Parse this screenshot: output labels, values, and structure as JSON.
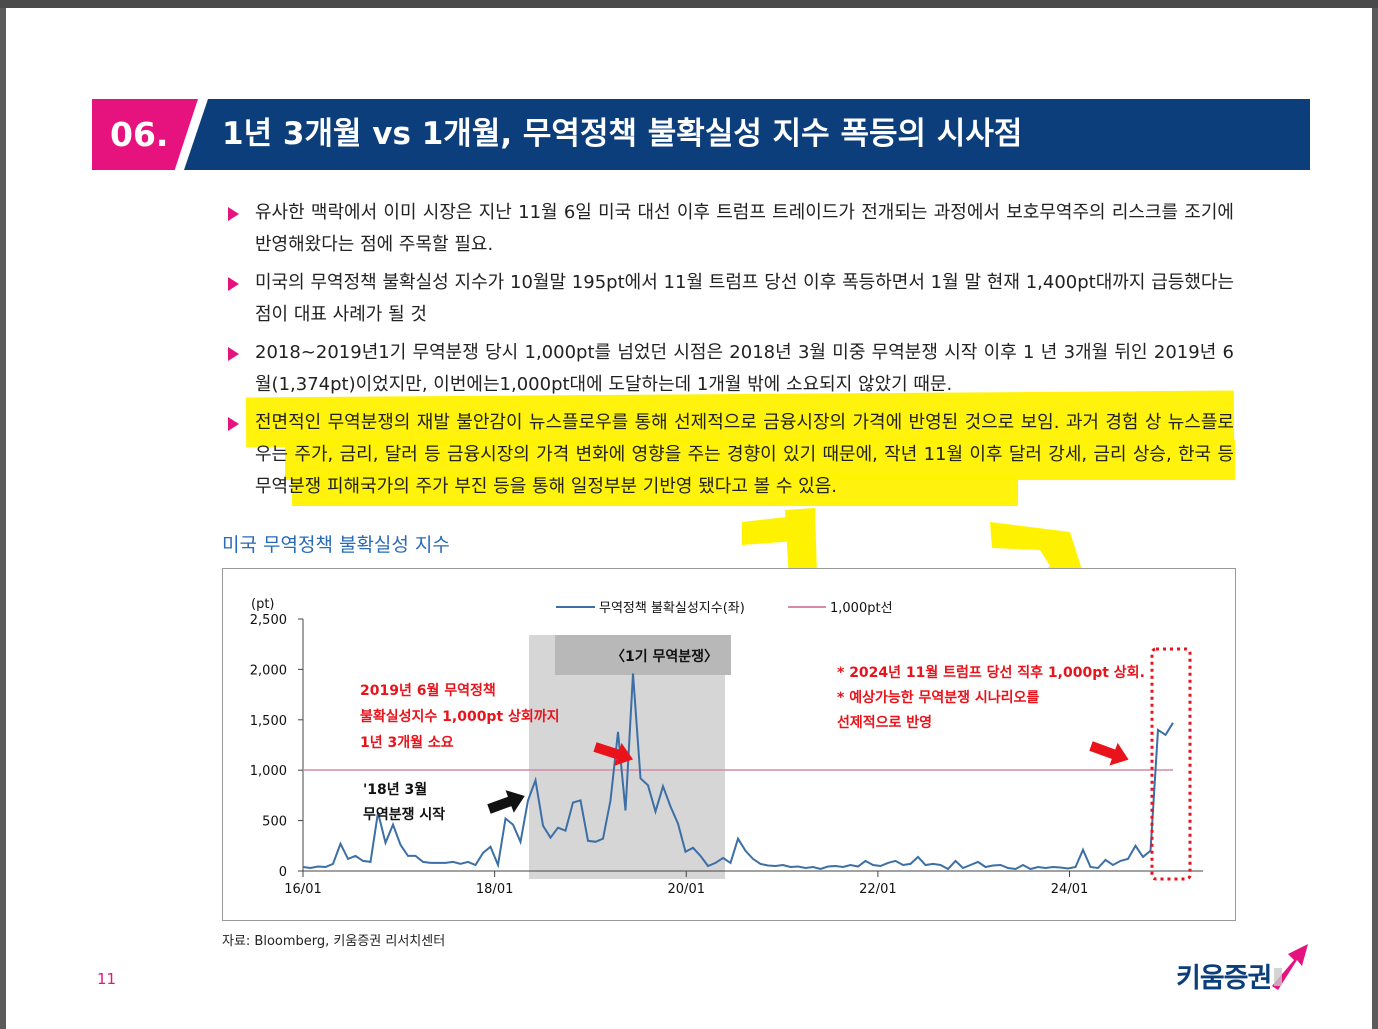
{
  "header": {
    "number": "06.",
    "title": "1년 3개월 vs 1개월, 무역정책 불확실성 지수 폭등의 시사점"
  },
  "bullets": [
    "유사한 맥락에서 이미 시장은 지난 11월 6일 미국 대선 이후 트럼프 트레이드가 전개되는 과정에서 보호무역주의 리스크를 조기에 반영해왔다는 점에 주목할 필요.",
    "미국의 무역정책 불확실성 지수가 10월말 195pt에서 11월 트럼프 당선 이후 폭등하면서 1월 말 현재 1,400pt대까지 급등했다는 점이 대표 사례가 될 것",
    "2018~2019년1기 무역분쟁 당시 1,000pt를 넘었던 시점은 2018년 3월 미중 무역분쟁 시작 이후 1 년 3개월 뒤인 2019년 6월(1,374pt)이었지만, 이번에는1,000pt대에 도달하는데 1개월 밖에 소요되지 않았기 때문.",
    "전면적인 무역분쟁의 재발 불안감이 뉴스플로우를 통해 선제적으로 금융시장의 가격에 반영된 것으로 보임. 과거 경험 상 뉴스플로우는 주가, 금리, 달러 등 금융시장의 가격 변화에 영향을 주는 경향이 있기 때문에, 작년 11월 이후 달러 강세, 금리 상승, 한국 등 무역분쟁 피해국가의 주가 부진 등을 통해 일정부분 기반영 됐다고 볼 수 있음."
  ],
  "chart_title": "미국 무역정책 불확실성 지수",
  "chart_data": {
    "type": "line",
    "unit_label": "(pt)",
    "ylim": [
      0,
      2500
    ],
    "yticks": [
      "2,500",
      "2,000",
      "1,500",
      "1,000",
      "500",
      "0"
    ],
    "xticks": [
      "16/01",
      "18/01",
      "20/01",
      "22/01",
      "24/01"
    ],
    "legend": {
      "series": "무역정책 불확실성지수(좌)",
      "threshold": "1,000pt선"
    },
    "threshold": 1000,
    "series_values": [
      40,
      30,
      45,
      40,
      70,
      270,
      120,
      150,
      100,
      90,
      580,
      280,
      460,
      260,
      150,
      150,
      90,
      80,
      80,
      80,
      90,
      70,
      90,
      60,
      180,
      240,
      60,
      520,
      460,
      290,
      700,
      900,
      450,
      330,
      430,
      400,
      680,
      700,
      300,
      290,
      320,
      700,
      1380,
      600,
      1960,
      920,
      850,
      590,
      840,
      640,
      470,
      190,
      230,
      150,
      50,
      80,
      130,
      80,
      320,
      200,
      120,
      70,
      55,
      50,
      60,
      40,
      45,
      30,
      40,
      20,
      45,
      50,
      40,
      60,
      45,
      100,
      60,
      50,
      80,
      100,
      60,
      70,
      140,
      60,
      70,
      60,
      20,
      100,
      30,
      60,
      90,
      40,
      55,
      60,
      30,
      20,
      60,
      20,
      40,
      30,
      40,
      35,
      25,
      40,
      210,
      40,
      30,
      110,
      60,
      100,
      120,
      250,
      140,
      200,
      1400,
      1350,
      1470
    ],
    "x_range": [
      2016.0,
      2025.08
    ],
    "shaded_label": "〈1기 무역분쟁〉",
    "annotations": {
      "left": [
        "2019년 6월 무역정책",
        "불확실성지수 1,000pt 상회까지",
        "1년 3개월 소요"
      ],
      "start": [
        "'18년 3월",
        "무역분쟁 시작"
      ],
      "right": [
        "* 2024년 11월 트럼프 당선 직후 1,000pt 상회.",
        "* 예상가능한 무역분쟁 시나리오를",
        "선제적으로 반영"
      ]
    },
    "colors": {
      "line": "#3c6fa6",
      "threshold": "#d48aa8",
      "shade": "#d6d6d6",
      "red": "#e8131b"
    }
  },
  "source": "자료: Bloomberg, 키움증권 리서치센터",
  "page_number": "11",
  "logo_text": "키움증권"
}
